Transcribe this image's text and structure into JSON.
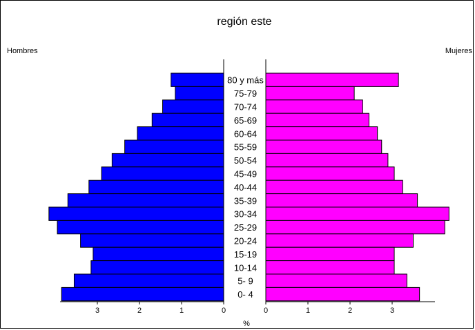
{
  "chart_data": {
    "type": "bar",
    "subtype": "population-pyramid",
    "title": "región este",
    "left_label": "Hombres",
    "right_label": "Mujeres",
    "xlabel": "%",
    "categories": [
      "80 y más",
      "75-79",
      "70-74",
      "65-69",
      "60-64",
      "55-59",
      "50-54",
      "45-49",
      "40-44",
      "35-39",
      "30-34",
      "25-29",
      "20-24",
      "15-19",
      "10-14",
      "5- 9",
      "0- 4"
    ],
    "series": [
      {
        "name": "Hombres",
        "color": "#0000ff",
        "values": [
          1.25,
          1.15,
          1.45,
          1.7,
          2.05,
          2.35,
          2.65,
          2.9,
          3.2,
          3.7,
          4.15,
          3.95,
          3.4,
          3.1,
          3.15,
          3.55,
          3.85
        ]
      },
      {
        "name": "Mujeres",
        "color": "#ff00ff",
        "values": [
          3.15,
          2.1,
          2.3,
          2.45,
          2.65,
          2.75,
          2.9,
          3.05,
          3.25,
          3.6,
          4.35,
          4.25,
          3.5,
          3.05,
          3.05,
          3.35,
          3.65
        ]
      }
    ],
    "x_ticks": [
      "3",
      "2",
      "1",
      "0"
    ],
    "x_ticks_right": [
      "0",
      "1",
      "2",
      "3"
    ],
    "xlim": [
      0,
      4.5
    ]
  }
}
